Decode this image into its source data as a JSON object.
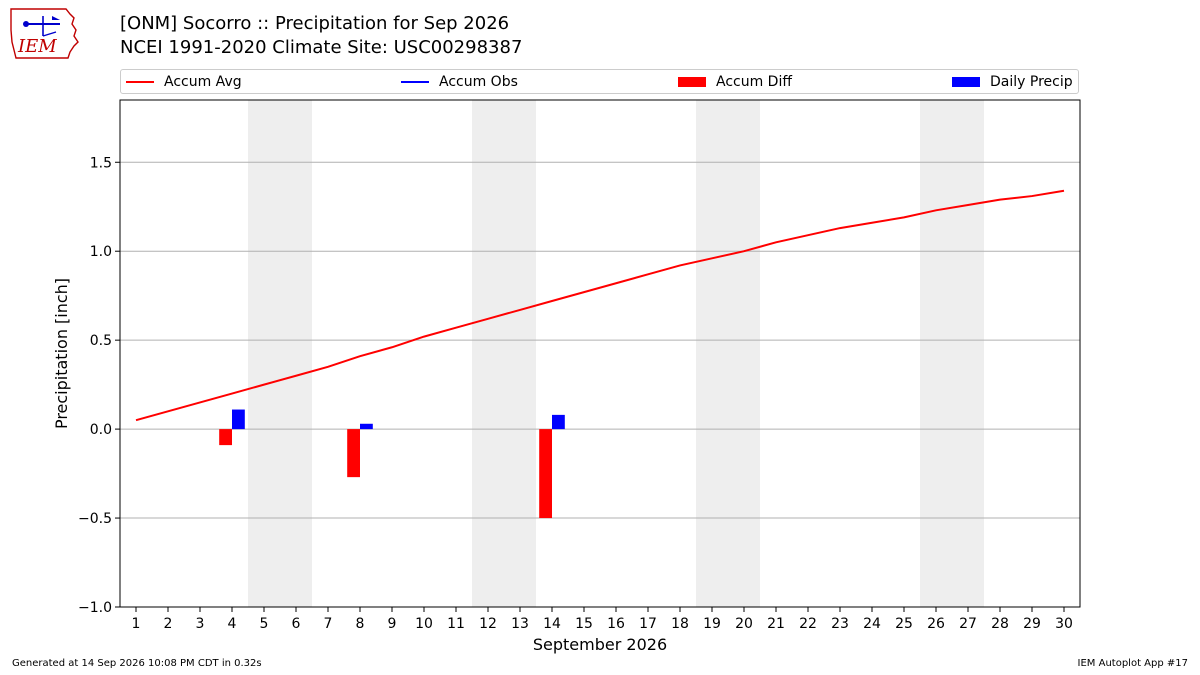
{
  "header": {
    "title_line1": "[ONM] Socorro :: Precipitation for Sep 2026",
    "title_line2": "NCEI 1991-2020 Climate Site: USC00298387",
    "logo_text": "IEM"
  },
  "legend": {
    "accum_avg": "Accum Avg",
    "accum_obs": "Accum Obs",
    "accum_diff": "Accum Diff",
    "daily_precip": "Daily Precip"
  },
  "colors": {
    "accum_avg": "#ff0000",
    "accum_obs": "#0000ff",
    "accum_diff": "#ff0000",
    "daily_precip": "#0000ff",
    "weekend_shade": "#eeeeee",
    "grid": "#b0b0b0"
  },
  "footer": {
    "generated": "Generated at 14 Sep 2026 10:08 PM CDT in 0.32s",
    "app": "IEM Autoplot App #17"
  },
  "chart_data": {
    "type": "bar",
    "xlabel": "September 2026",
    "ylabel": "Precipitation [inch]",
    "xlim": [
      0.5,
      30.5
    ],
    "ylim": [
      -1.0,
      1.85
    ],
    "yticks": [
      -1.0,
      -0.5,
      0.0,
      0.5,
      1.0,
      1.5
    ],
    "ytick_labels": [
      "−1.0",
      "−0.5",
      "0.0",
      "0.5",
      "1.0",
      "1.5"
    ],
    "xticks": [
      1,
      2,
      3,
      4,
      5,
      6,
      7,
      8,
      9,
      10,
      11,
      12,
      13,
      14,
      15,
      16,
      17,
      18,
      19,
      20,
      21,
      22,
      23,
      24,
      25,
      26,
      27,
      28,
      29,
      30
    ],
    "grid": "horizontal",
    "legend_position": "top",
    "weekend_shading": [
      [
        5,
        6
      ],
      [
        12,
        13
      ],
      [
        19,
        20
      ],
      [
        26,
        27
      ]
    ],
    "series": [
      {
        "name": "Accum Avg",
        "type": "line",
        "x": [
          1,
          2,
          3,
          4,
          5,
          6,
          7,
          8,
          9,
          10,
          11,
          12,
          13,
          14,
          15,
          16,
          17,
          18,
          19,
          20,
          21,
          22,
          23,
          24,
          25,
          26,
          27,
          28,
          29,
          30
        ],
        "values": [
          0.05,
          0.1,
          0.15,
          0.2,
          0.25,
          0.3,
          0.35,
          0.41,
          0.46,
          0.52,
          0.57,
          0.62,
          0.67,
          0.72,
          0.77,
          0.82,
          0.87,
          0.92,
          0.96,
          1.0,
          1.05,
          1.09,
          1.13,
          1.16,
          1.19,
          1.23,
          1.26,
          1.29,
          1.31,
          1.34
        ]
      },
      {
        "name": "Accum Diff",
        "type": "bar",
        "x": [
          4,
          8,
          14
        ],
        "values": [
          -0.09,
          -0.27,
          -0.5
        ]
      },
      {
        "name": "Daily Precip",
        "type": "bar",
        "x": [
          4,
          8,
          14
        ],
        "values": [
          0.11,
          0.03,
          0.08
        ]
      }
    ]
  }
}
